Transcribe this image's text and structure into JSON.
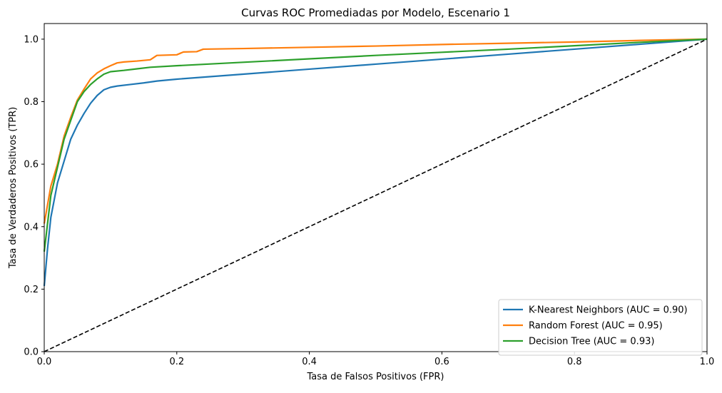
{
  "chart_data": {
    "type": "line",
    "title": "Curvas ROC Promediadas por Modelo, Escenario 1",
    "xlabel": "Tasa de Falsos Positivos (FPR)",
    "ylabel": "Tasa de Verdaderos Positivos (TPR)",
    "xlim": [
      0.0,
      1.0
    ],
    "ylim": [
      0.0,
      1.05
    ],
    "xticks": [
      0.0,
      0.2,
      0.4,
      0.6,
      0.8,
      1.0
    ],
    "yticks": [
      0.0,
      0.2,
      0.4,
      0.6,
      0.8,
      1.0
    ],
    "xtick_labels": [
      "0.0",
      "0.2",
      "0.4",
      "0.6",
      "0.8",
      "1.0"
    ],
    "ytick_labels": [
      "0.0",
      "0.2",
      "0.4",
      "0.6",
      "0.8",
      "1.0"
    ],
    "grid": false,
    "legend_position": "bottom-right",
    "series": [
      {
        "name": "K-Nearest Neighbors (AUC = 0.90)",
        "color": "#1f77b4",
        "x": [
          0.0,
          0.005,
          0.01,
          0.02,
          0.03,
          0.04,
          0.05,
          0.06,
          0.07,
          0.08,
          0.09,
          0.1,
          0.11,
          0.13,
          0.15,
          0.17,
          0.2,
          0.3,
          0.4,
          0.5,
          0.6,
          0.7,
          0.8,
          0.9,
          1.0
        ],
        "y": [
          0.21,
          0.33,
          0.43,
          0.54,
          0.61,
          0.68,
          0.725,
          0.762,
          0.795,
          0.82,
          0.838,
          0.846,
          0.85,
          0.855,
          0.86,
          0.866,
          0.872,
          0.888,
          0.904,
          0.92,
          0.936,
          0.952,
          0.968,
          0.984,
          1.0
        ]
      },
      {
        "name": "Random Forest (AUC = 0.95)",
        "color": "#ff7f0e",
        "x": [
          0.0,
          0.01,
          0.02,
          0.03,
          0.04,
          0.05,
          0.06,
          0.07,
          0.08,
          0.09,
          0.1,
          0.11,
          0.12,
          0.14,
          0.16,
          0.17,
          0.2,
          0.21,
          0.23,
          0.24,
          0.3,
          0.4,
          0.5,
          0.6,
          0.7,
          0.8,
          0.9,
          1.0
        ],
        "y": [
          0.41,
          0.53,
          0.6,
          0.69,
          0.75,
          0.805,
          0.84,
          0.873,
          0.892,
          0.905,
          0.915,
          0.924,
          0.927,
          0.93,
          0.934,
          0.948,
          0.95,
          0.959,
          0.96,
          0.968,
          0.97,
          0.974,
          0.978,
          0.983,
          0.987,
          0.991,
          0.996,
          1.0
        ]
      },
      {
        "name": "Decision Tree (AUC = 0.93)",
        "color": "#2ca02c",
        "x": [
          0.0,
          0.01,
          0.02,
          0.03,
          0.04,
          0.05,
          0.06,
          0.07,
          0.08,
          0.09,
          0.1,
          0.12,
          0.14,
          0.16,
          0.2,
          0.3,
          0.4,
          0.5,
          0.6,
          0.7,
          0.8,
          0.9,
          1.0
        ],
        "y": [
          0.32,
          0.5,
          0.59,
          0.68,
          0.74,
          0.8,
          0.832,
          0.855,
          0.873,
          0.888,
          0.896,
          0.9,
          0.905,
          0.91,
          0.915,
          0.926,
          0.937,
          0.948,
          0.958,
          0.968,
          0.979,
          0.99,
          1.0
        ]
      },
      {
        "name": "",
        "color": "#000000",
        "style": "dashed",
        "x": [
          0.0,
          1.0
        ],
        "y": [
          0.0,
          1.0
        ]
      }
    ]
  }
}
